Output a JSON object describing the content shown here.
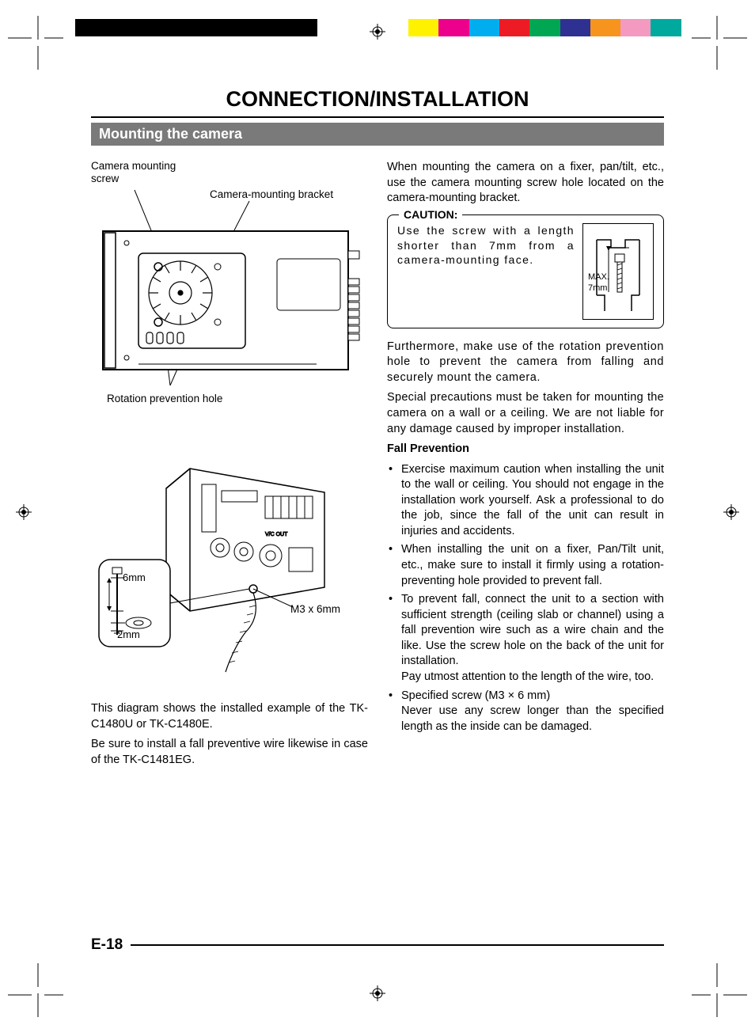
{
  "colorbar": [
    "#000000",
    "#000000",
    "#000000",
    "#000000",
    "#000000",
    "#000000",
    "#000000",
    "#000000",
    "#ffffff",
    "#ffffff",
    "#ffffff",
    "#fff200",
    "#ec008c",
    "#00aeef",
    "#ed1c24",
    "#00a651",
    "#2e3192",
    "#f7941d",
    "#f49ac1",
    "#00a99d",
    "#ffffff"
  ],
  "title": "CONNECTION/INSTALLATION",
  "section": "Mounting the camera",
  "diagram1": {
    "label_screw": "Camera mounting screw",
    "label_bracket": "Camera-mounting bracket",
    "label_hole": "Rotation prevention hole"
  },
  "diagram2": {
    "label_screw": "M3 x 6mm",
    "label_6mm": "6mm",
    "label_2mm": "2mm"
  },
  "left_text1": "This diagram shows the installed example of the TK-C1480U or TK-C1480E.",
  "left_text2": "Be sure to install a fall preventive wire likewise in case of the TK-C1481EG.",
  "right_intro": "When mounting the camera on a fixer, pan/tilt, etc., use the camera mounting screw hole located on the camera-mounting bracket.",
  "caution": {
    "title": "CAUTION:",
    "text": "Use the screw with a length shorter than 7mm from a camera-mounting face.",
    "max_label": "MAX.",
    "max_value": "7mm"
  },
  "right_p2": "Furthermore, make use of the rotation prevention hole to prevent the camera from falling and securely mount the camera.",
  "right_p3": "Special precautions must be taken for mounting the camera on a wall or a ceiling. We are not liable for any damage caused by improper installation.",
  "fall_head": "Fall Prevention",
  "bullets": [
    "Exercise maximum caution when installing the unit to the wall or ceiling. You should not engage in the installation work yourself.  Ask a professional to do the job, since the fall of the unit can result in injuries and accidents.",
    "When installing the unit on a fixer, Pan/Tilt unit, etc., make sure to install it firmly using a rotation-preventing hole provided to prevent fall.",
    "To prevent fall, connect the unit to a section with sufficient strength (ceiling slab or channel) using a fall prevention wire such as a wire chain and the like. Use the screw hole on the back of the unit for installation.\nPay utmost attention to the length of the wire, too.",
    "Specified screw (M3 × 6 mm)\nNever use any screw longer than the specified length as the inside can be damaged."
  ],
  "page_number": "E-18"
}
